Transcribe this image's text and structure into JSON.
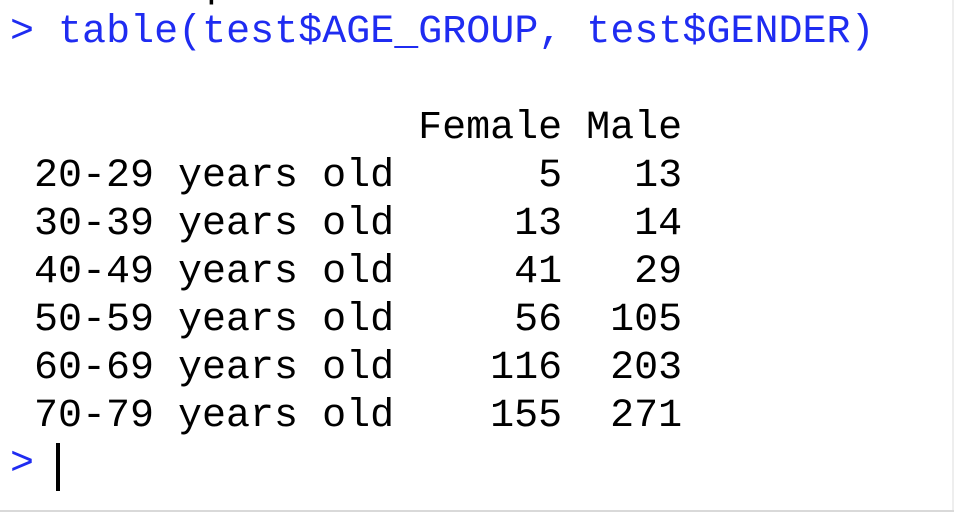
{
  "console": {
    "previous_line_fragment": "p",
    "command_prompt": ">",
    "command_text": "table(test$AGE_GROUP, test$GENDER)",
    "current_prompt": ">"
  },
  "output_table": {
    "header": "                Female Male",
    "columns": [
      "Female",
      "Male"
    ],
    "rows": [
      {
        "label": "20-29 years old",
        "female": "5",
        "male": "13",
        "text": "20-29 years old      5   13"
      },
      {
        "label": "30-39 years old",
        "female": "13",
        "male": "14",
        "text": "30-39 years old     13   14"
      },
      {
        "label": "40-49 years old",
        "female": "41",
        "male": "29",
        "text": "40-49 years old     41   29"
      },
      {
        "label": "50-59 years old",
        "female": "56",
        "male": "105",
        "text": "50-59 years old     56  105"
      },
      {
        "label": "60-69 years old",
        "female": "116",
        "male": "203",
        "text": "60-69 years old    116  203"
      },
      {
        "label": "70-79 years old",
        "female": "155",
        "male": "271",
        "text": "70-79 years old    155  271"
      }
    ]
  },
  "colors": {
    "input_text": "#1f2cf1",
    "output_text": "#000000",
    "background": "#ffffff"
  }
}
